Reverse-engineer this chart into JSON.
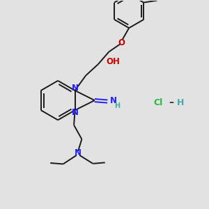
{
  "background_color": "#e2e2e2",
  "bond_color": "#1a1a1a",
  "n_color": "#2020ff",
  "o_color": "#cc0000",
  "cl_color": "#22bb44",
  "h_color": "#44aaaa",
  "figsize": [
    3.0,
    3.0
  ],
  "dpi": 100,
  "lw": 1.4,
  "fs": 8.5,
  "fs_small": 7.0,
  "xlim": [
    0,
    10
  ],
  "ylim": [
    0,
    10
  ]
}
